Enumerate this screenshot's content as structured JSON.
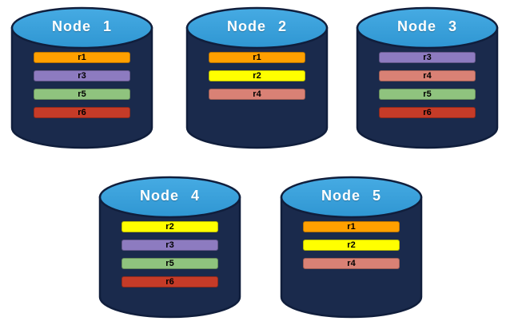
{
  "diagram": {
    "background_color": "#FFFFFF",
    "cylinder": {
      "body_color": "#1A2A4C",
      "stroke_color": "#101E3C",
      "top_color_light": "#46ABE3",
      "top_color_dark": "#2F96D2",
      "title_color": "#FFFFFF",
      "bar_text_color": "#000000"
    },
    "replica_colors": {
      "r1": "#FFA000",
      "r2": "#FFFF00",
      "r3": "#8D7BC0",
      "r4": "#D98175",
      "r5": "#8FC37E",
      "r6": "#C53B28"
    },
    "nodes": [
      {
        "title": "Node 1",
        "replicas": [
          {
            "label": "r1",
            "color": "#FFA000"
          },
          {
            "label": "r3",
            "color": "#8D7BC0"
          },
          {
            "label": "r5",
            "color": "#8FC37E"
          },
          {
            "label": "r6",
            "color": "#C53B28"
          }
        ]
      },
      {
        "title": "Node 2",
        "replicas": [
          {
            "label": "r1",
            "color": "#FFA000"
          },
          {
            "label": "r2",
            "color": "#FFFF00"
          },
          {
            "label": "r4",
            "color": "#D98175"
          }
        ]
      },
      {
        "title": "Node 3",
        "replicas": [
          {
            "label": "r3",
            "color": "#8D7BC0"
          },
          {
            "label": "r4",
            "color": "#D98175"
          },
          {
            "label": "r5",
            "color": "#8FC37E"
          },
          {
            "label": "r6",
            "color": "#C53B28"
          }
        ]
      },
      {
        "title": "Node 4",
        "replicas": [
          {
            "label": "r2",
            "color": "#FFFF00"
          },
          {
            "label": "r3",
            "color": "#8D7BC0"
          },
          {
            "label": "r5",
            "color": "#8FC37E"
          },
          {
            "label": "r6",
            "color": "#C53B28"
          }
        ]
      },
      {
        "title": "Node 5",
        "replicas": [
          {
            "label": "r1",
            "color": "#FFA000"
          },
          {
            "label": "r2",
            "color": "#FFFF00"
          },
          {
            "label": "r4",
            "color": "#D98175"
          }
        ]
      }
    ]
  }
}
